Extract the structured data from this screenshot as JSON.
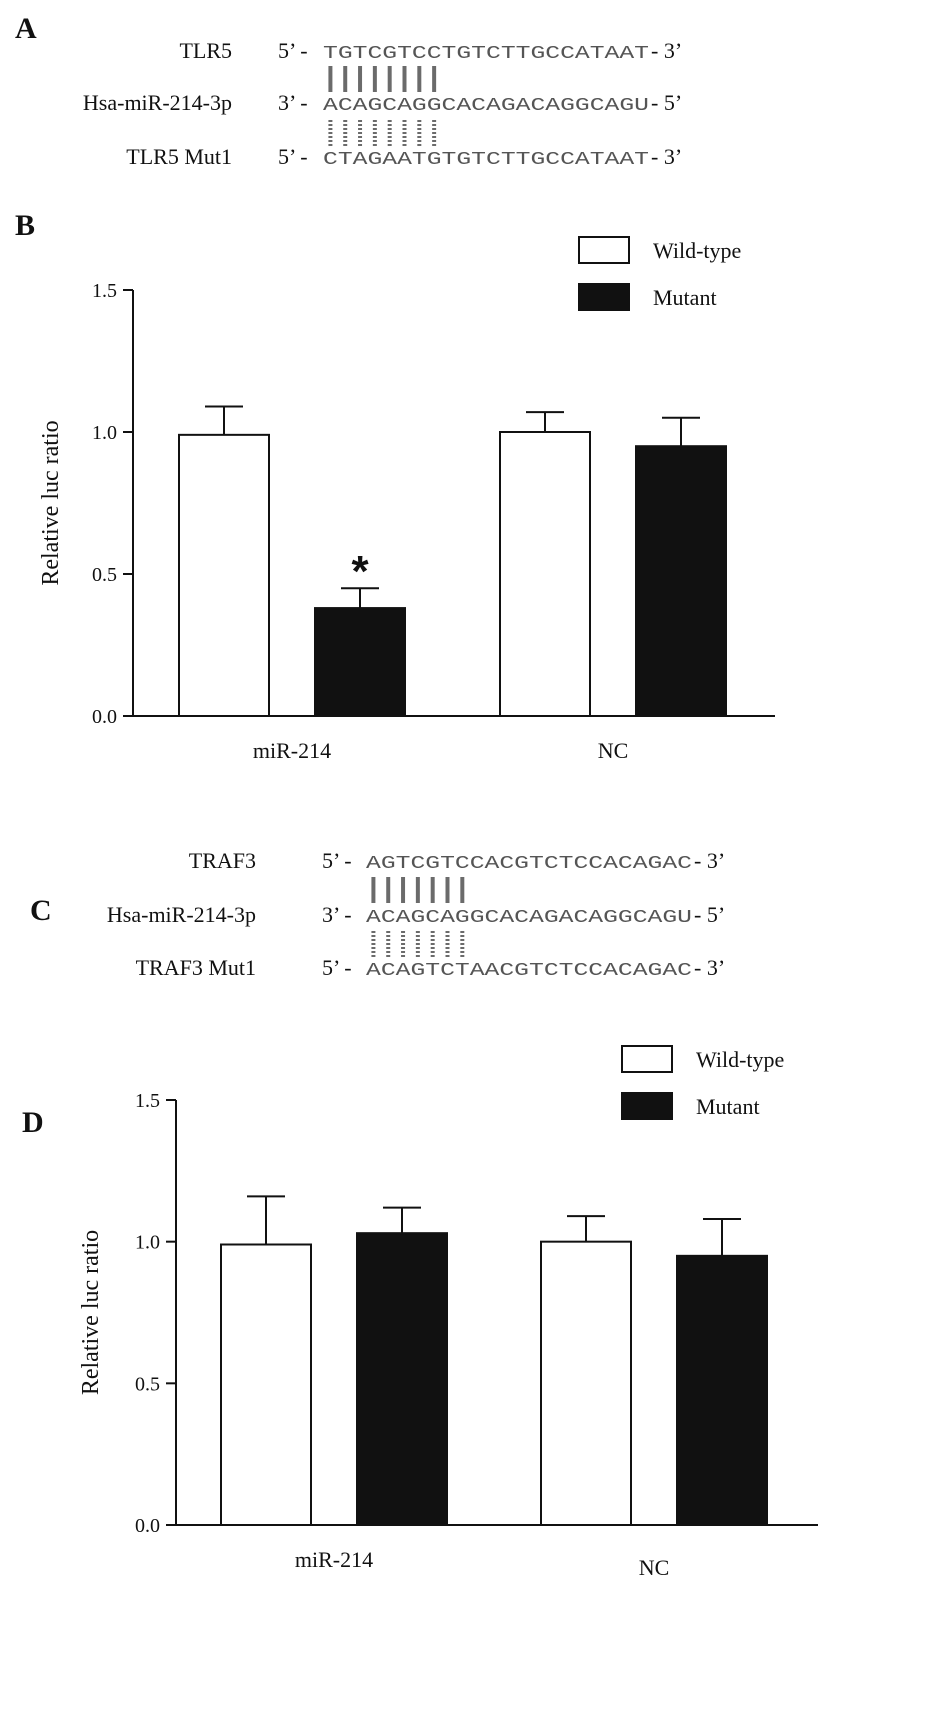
{
  "panels": {
    "A": {
      "letter": "A",
      "rows": [
        {
          "name": "TLR5",
          "dir_start": "5’ -",
          "seq": "TGTCGTCCTGTCTTGCCATAAT",
          "dir_end": "- 3’"
        },
        {
          "name": "Hsa-miR-214-3p",
          "dir_start": "3’ -",
          "seq": "ACAGCAGGCACAGACAGGCAGU",
          "dir_end": "- 5’"
        },
        {
          "name": "TLR5 Mut1",
          "dir_start": "5’ -",
          "seq": "CTAGAATGTGTCTTGCCATAAT",
          "dir_end": "- 3’"
        }
      ],
      "pair_count": 8
    },
    "B": {
      "letter": "B"
    },
    "C": {
      "letter": "C",
      "rows": [
        {
          "name": "TRAF3",
          "dir_start": "5’ -",
          "seq": "AGTCGTCCACGTCTCCACAGAC",
          "dir_end": "- 3’"
        },
        {
          "name": "Hsa-miR-214-3p",
          "dir_start": "3’ -",
          "seq": "ACAGCAGGCACAGACAGGCAGU",
          "dir_end": "- 5’"
        },
        {
          "name": "TRAF3 Mut1",
          "dir_start": "5’ -",
          "seq": "ACAGTCTAACGTCTCCACAGAC",
          "dir_end": "- 3’"
        }
      ],
      "pair_count": 7
    },
    "D": {
      "letter": "D"
    }
  },
  "chart_data": [
    {
      "panel": "B",
      "type": "bar",
      "categories": [
        "miR-214",
        "NC"
      ],
      "series": [
        {
          "name": "Wild-type",
          "values": [
            0.99,
            1.0
          ],
          "errors": [
            0.1,
            0.07
          ],
          "color": "#ffffff"
        },
        {
          "name": "Mutant",
          "values": [
            0.38,
            0.95
          ],
          "errors": [
            0.07,
            0.1
          ],
          "color": "#111111"
        }
      ],
      "ylabel": "Relative luc ratio",
      "ylim": [
        0,
        1.5
      ],
      "yticks": [
        "0.0",
        "0.5",
        "1.0",
        "1.5"
      ],
      "legend": "top-right",
      "annotations": [
        {
          "text": "*",
          "category": "miR-214",
          "series": "Mutant"
        }
      ]
    },
    {
      "panel": "D",
      "type": "bar",
      "categories": [
        "miR-214",
        "NC"
      ],
      "series": [
        {
          "name": "Wild-type",
          "values": [
            0.99,
            1.0
          ],
          "errors": [
            0.17,
            0.09
          ],
          "color": "#ffffff"
        },
        {
          "name": "Mutant",
          "values": [
            1.03,
            0.95
          ],
          "errors": [
            0.09,
            0.13
          ],
          "color": "#111111"
        }
      ],
      "ylabel": "Relative luc ratio",
      "ylim": [
        0,
        1.5
      ],
      "yticks": [
        "0.0",
        "0.5",
        "1.0",
        "1.5"
      ],
      "legend": "top-right",
      "annotations": []
    }
  ]
}
